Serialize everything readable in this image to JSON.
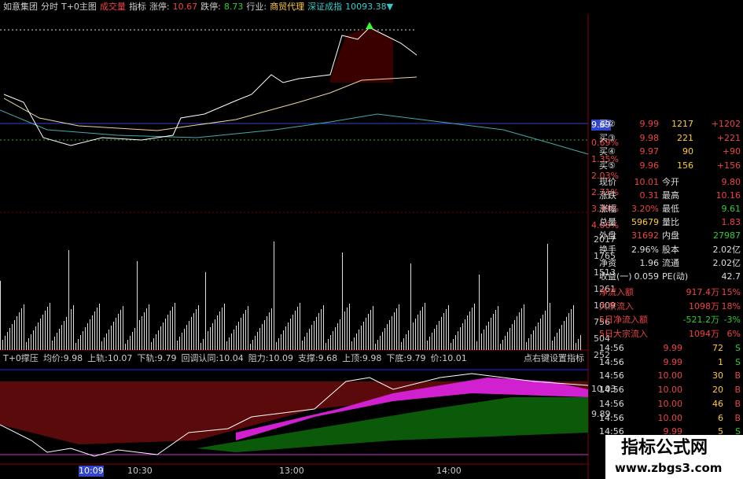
{
  "header": {
    "items": [
      "如意集团",
      "分时",
      "T+0主图",
      "成交量",
      "指标",
      "涨停:",
      "10.67",
      "跌停:",
      "8.73",
      "行业:",
      "商贸代理",
      "深证成指",
      "10093.38▼"
    ]
  },
  "price_axis": [
    "9.69",
    "0.69%",
    "1.35%",
    "2.03%",
    "2.71%",
    "3.39%",
    "4.06%"
  ],
  "volume_axis": [
    "2017",
    "1765",
    "1513",
    "1261",
    "1009",
    "756",
    "504",
    "252"
  ],
  "indicator": {
    "items": [
      "T+0撑压",
      "均价:9.98",
      "上轨:10.07",
      "下轨:9.79",
      "回调认同:10.04",
      "阻力:10.09",
      "支撑:9.68",
      "上顶:9.98",
      "下底:9.79",
      "价:10.01"
    ],
    "hint": "点右键设置指标",
    "axis": [
      "10.03",
      "9.89"
    ]
  },
  "time_axis": [
    "10:09",
    "10:30",
    "13:00",
    "14:00"
  ],
  "order_book": [
    [
      "买②",
      "9.99",
      "1217",
      "+1202"
    ],
    [
      "买③",
      "9.98",
      "221",
      "+221"
    ],
    [
      "买④",
      "9.97",
      "90",
      "+90"
    ],
    [
      "买⑤",
      "9.96",
      "156",
      "+156"
    ]
  ],
  "quotes": [
    [
      "现价",
      "10.01",
      "今开",
      "9.80"
    ],
    [
      "涨跌",
      "0.31",
      "最高",
      "10.16"
    ],
    [
      "涨幅",
      "3.20%",
      "最低",
      "9.61"
    ],
    [
      "总量",
      "59679",
      "量比",
      "1.83"
    ],
    [
      "外盘",
      "31692",
      "内盘",
      "27987"
    ],
    [
      "换手",
      "2.96%",
      "股本",
      "2.02亿"
    ],
    [
      "净资",
      "1.96",
      "流通",
      "2.02亿"
    ],
    [
      "收益(一)",
      "0.059",
      "PE(动)",
      "42.7"
    ]
  ],
  "flows": [
    [
      "净流入额",
      "917.4万",
      "15%"
    ],
    [
      "大宗流入",
      "1098万",
      "18%"
    ],
    [
      "5日净流入额",
      "-521.2万",
      "-3%"
    ],
    [
      "5日大宗流入",
      "1094万",
      "6%"
    ]
  ],
  "trades": [
    [
      "14:56",
      "9.99",
      "72",
      "S"
    ],
    [
      "14:56",
      "9.99",
      "1",
      "S"
    ],
    [
      "14:56",
      "10.00",
      "30",
      "B"
    ],
    [
      "14:56",
      "10.00",
      "20",
      "B"
    ],
    [
      "14:56",
      "10.00",
      "46",
      "B"
    ],
    [
      "14:56",
      "10.00",
      "6",
      "B"
    ],
    [
      "14:56",
      "9.99",
      "5",
      "S"
    ]
  ],
  "watermark": {
    "title": "指标公式网",
    "url": "www.zbgs3.com"
  }
}
